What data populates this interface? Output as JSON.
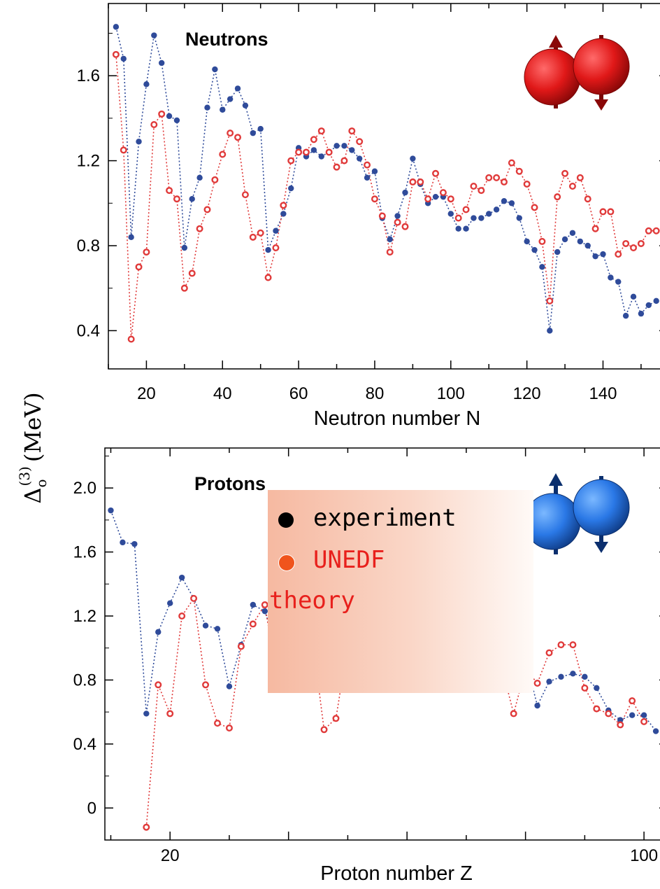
{
  "colors": {
    "experiment": "#2f4b9a",
    "theory": "#e03a3a",
    "neutron_icon": "#e01818",
    "proton_icon": "#2a78e6"
  },
  "ylabel": {
    "main": "Δ",
    "sub": "o",
    "sup": "(3)",
    "unit": "(MeV)"
  },
  "legend": {
    "experiment_label": "experiment",
    "theory_label_1": "UNEDF",
    "theory_label_2": "theory"
  },
  "chart_data": [
    {
      "type": "scatter",
      "title": "Neutrons",
      "xlabel": "Neutron number N",
      "ylabel": "Δo(3) (MeV)",
      "xlim": [
        10,
        157
      ],
      "ylim": [
        0.22,
        1.94
      ],
      "xticks": [
        20,
        40,
        60,
        80,
        100,
        120,
        140
      ],
      "yticks": [
        0.4,
        0.8,
        1.2,
        1.6
      ],
      "icon": "neutron-pair-icon",
      "series": [
        {
          "name": "experiment",
          "points": [
            [
              12,
              1.83
            ],
            [
              14,
              1.68
            ],
            [
              16,
              0.84
            ],
            [
              18,
              1.29
            ],
            [
              20,
              1.56
            ],
            [
              22,
              1.79
            ],
            [
              24,
              1.66
            ],
            [
              26,
              1.41
            ],
            [
              28,
              1.39
            ],
            [
              30,
              0.79
            ],
            [
              32,
              1.02
            ],
            [
              34,
              1.12
            ],
            [
              36,
              1.45
            ],
            [
              38,
              1.63
            ],
            [
              40,
              1.44
            ],
            [
              42,
              1.49
            ],
            [
              44,
              1.54
            ],
            [
              46,
              1.46
            ],
            [
              48,
              1.33
            ],
            [
              50,
              1.35
            ],
            [
              52,
              0.78
            ],
            [
              54,
              0.87
            ],
            [
              56,
              0.95
            ],
            [
              58,
              1.07
            ],
            [
              60,
              1.26
            ],
            [
              62,
              1.22
            ],
            [
              64,
              1.25
            ],
            [
              66,
              1.22
            ],
            [
              68,
              1.24
            ],
            [
              70,
              1.27
            ],
            [
              72,
              1.27
            ],
            [
              74,
              1.25
            ],
            [
              76,
              1.21
            ],
            [
              78,
              1.12
            ],
            [
              80,
              1.15
            ],
            [
              82,
              0.93
            ],
            [
              84,
              0.83
            ],
            [
              86,
              0.94
            ],
            [
              88,
              1.05
            ],
            [
              90,
              1.21
            ],
            [
              92,
              1.09
            ],
            [
              94,
              1.0
            ],
            [
              96,
              1.03
            ],
            [
              98,
              1.03
            ],
            [
              100,
              0.95
            ],
            [
              102,
              0.88
            ],
            [
              104,
              0.88
            ],
            [
              106,
              0.93
            ],
            [
              108,
              0.93
            ],
            [
              110,
              0.95
            ],
            [
              112,
              0.97
            ],
            [
              114,
              1.01
            ],
            [
              116,
              1.0
            ],
            [
              118,
              0.93
            ],
            [
              120,
              0.82
            ],
            [
              122,
              0.78
            ],
            [
              124,
              0.7
            ],
            [
              126,
              0.4
            ],
            [
              128,
              0.77
            ],
            [
              130,
              0.83
            ],
            [
              132,
              0.86
            ],
            [
              134,
              0.82
            ],
            [
              136,
              0.8
            ],
            [
              138,
              0.75
            ],
            [
              140,
              0.76
            ],
            [
              142,
              0.65
            ],
            [
              144,
              0.63
            ],
            [
              146,
              0.47
            ],
            [
              148,
              0.56
            ],
            [
              150,
              0.48
            ],
            [
              152,
              0.52
            ],
            [
              154,
              0.54
            ]
          ]
        },
        {
          "name": "UNEDF theory",
          "points": [
            [
              12,
              1.7
            ],
            [
              14,
              1.25
            ],
            [
              16,
              0.36
            ],
            [
              18,
              0.7
            ],
            [
              20,
              0.77
            ],
            [
              22,
              1.37
            ],
            [
              24,
              1.42
            ],
            [
              26,
              1.06
            ],
            [
              28,
              1.02
            ],
            [
              30,
              0.6
            ],
            [
              32,
              0.67
            ],
            [
              34,
              0.88
            ],
            [
              36,
              0.97
            ],
            [
              38,
              1.11
            ],
            [
              40,
              1.23
            ],
            [
              42,
              1.33
            ],
            [
              44,
              1.31
            ],
            [
              46,
              1.04
            ],
            [
              48,
              0.84
            ],
            [
              50,
              0.86
            ],
            [
              52,
              0.65
            ],
            [
              54,
              0.79
            ],
            [
              56,
              0.99
            ],
            [
              58,
              1.2
            ],
            [
              60,
              1.24
            ],
            [
              62,
              1.24
            ],
            [
              64,
              1.3
            ],
            [
              66,
              1.34
            ],
            [
              68,
              1.24
            ],
            [
              70,
              1.17
            ],
            [
              72,
              1.2
            ],
            [
              74,
              1.34
            ],
            [
              76,
              1.29
            ],
            [
              78,
              1.18
            ],
            [
              80,
              1.02
            ],
            [
              82,
              0.94
            ],
            [
              84,
              0.77
            ],
            [
              86,
              0.91
            ],
            [
              88,
              0.89
            ],
            [
              90,
              1.1
            ],
            [
              92,
              1.1
            ],
            [
              94,
              1.02
            ],
            [
              96,
              1.14
            ],
            [
              98,
              1.05
            ],
            [
              100,
              1.02
            ],
            [
              102,
              0.93
            ],
            [
              104,
              0.97
            ],
            [
              106,
              1.08
            ],
            [
              108,
              1.06
            ],
            [
              110,
              1.12
            ],
            [
              112,
              1.12
            ],
            [
              114,
              1.1
            ],
            [
              116,
              1.19
            ],
            [
              118,
              1.15
            ],
            [
              120,
              1.09
            ],
            [
              122,
              0.98
            ],
            [
              124,
              0.82
            ],
            [
              126,
              0.54
            ],
            [
              128,
              1.03
            ],
            [
              130,
              1.14
            ],
            [
              132,
              1.08
            ],
            [
              134,
              1.12
            ],
            [
              136,
              1.02
            ],
            [
              138,
              0.88
            ],
            [
              140,
              0.96
            ],
            [
              142,
              0.96
            ],
            [
              144,
              0.76
            ],
            [
              146,
              0.81
            ],
            [
              148,
              0.79
            ],
            [
              150,
              0.81
            ],
            [
              152,
              0.87
            ],
            [
              154,
              0.87
            ]
          ]
        }
      ]
    },
    {
      "type": "scatter",
      "title": "Protons",
      "xlabel": "Proton number Z",
      "ylabel": "Δo(3) (MeV)",
      "xlim": [
        9,
        104
      ],
      "ylim": [
        -0.2,
        2.25
      ],
      "xticks": [
        20,
        100
      ],
      "yticks": [
        0,
        0.4,
        0.8,
        1.2,
        1.6,
        2.0
      ],
      "ytick_labels": [
        "0",
        "0.4",
        "0.8",
        "1.2",
        "1.6",
        "2.0"
      ],
      "icon": "proton-pair-icon",
      "series": [
        {
          "name": "experiment",
          "points": [
            [
              10,
              1.86
            ],
            [
              12,
              1.66
            ],
            [
              14,
              1.65
            ],
            [
              16,
              0.59
            ],
            [
              18,
              1.1
            ],
            [
              20,
              1.28
            ],
            [
              22,
              1.44
            ],
            [
              24,
              1.31
            ],
            [
              26,
              1.14
            ],
            [
              28,
              1.12
            ],
            [
              30,
              0.76
            ],
            [
              32,
              1.02
            ],
            [
              34,
              1.27
            ],
            [
              36,
              1.23
            ],
            [
              38,
              1.0
            ],
            [
              40,
              1.15
            ],
            [
              42,
              1.13
            ],
            [
              44,
              1.17
            ],
            [
              46,
              1.08
            ],
            [
              48,
              1.12
            ],
            [
              50,
              1.1
            ],
            [
              52,
              0.88
            ],
            [
              54,
              1.0
            ],
            [
              56,
              1.05
            ],
            [
              58,
              1.01
            ],
            [
              60,
              1.06
            ],
            [
              62,
              1.02
            ],
            [
              64,
              0.98
            ],
            [
              66,
              1.0
            ],
            [
              68,
              0.92
            ],
            [
              70,
              0.87
            ],
            [
              72,
              0.87
            ],
            [
              74,
              0.84
            ],
            [
              76,
              0.79
            ],
            [
              78,
              0.88
            ],
            [
              80,
              0.93
            ],
            [
              82,
              0.64
            ],
            [
              84,
              0.79
            ],
            [
              86,
              0.82
            ],
            [
              88,
              0.84
            ],
            [
              90,
              0.82
            ],
            [
              92,
              0.75
            ],
            [
              94,
              0.61
            ],
            [
              96,
              0.55
            ],
            [
              98,
              0.58
            ],
            [
              100,
              0.58
            ],
            [
              102,
              0.48
            ]
          ]
        },
        {
          "name": "UNEDF theory",
          "points": [
            [
              16,
              -0.12
            ],
            [
              18,
              0.77
            ],
            [
              20,
              0.59
            ],
            [
              22,
              1.2
            ],
            [
              24,
              1.31
            ],
            [
              26,
              0.77
            ],
            [
              28,
              0.53
            ],
            [
              30,
              0.5
            ],
            [
              32,
              1.01
            ],
            [
              34,
              1.15
            ],
            [
              36,
              1.27
            ],
            [
              38,
              0.82
            ],
            [
              40,
              1.26
            ],
            [
              42,
              1.12
            ],
            [
              44,
              1.07
            ],
            [
              46,
              0.49
            ],
            [
              48,
              0.56
            ],
            [
              50,
              1.02
            ],
            [
              52,
              1.06
            ],
            [
              54,
              1.08
            ],
            [
              56,
              1.21
            ],
            [
              58,
              1.11
            ],
            [
              60,
              1.2
            ],
            [
              62,
              1.18
            ],
            [
              64,
              1.22
            ],
            [
              66,
              0.95
            ],
            [
              68,
              0.82
            ],
            [
              70,
              0.88
            ],
            [
              72,
              0.84
            ],
            [
              74,
              0.76
            ],
            [
              76,
              0.88
            ],
            [
              78,
              0.59
            ],
            [
              80,
              0.87
            ],
            [
              82,
              0.78
            ],
            [
              84,
              0.97
            ],
            [
              86,
              1.02
            ],
            [
              88,
              1.02
            ],
            [
              90,
              0.75
            ],
            [
              92,
              0.62
            ],
            [
              94,
              0.59
            ],
            [
              96,
              0.52
            ],
            [
              98,
              0.67
            ],
            [
              100,
              0.54
            ]
          ]
        }
      ]
    }
  ]
}
